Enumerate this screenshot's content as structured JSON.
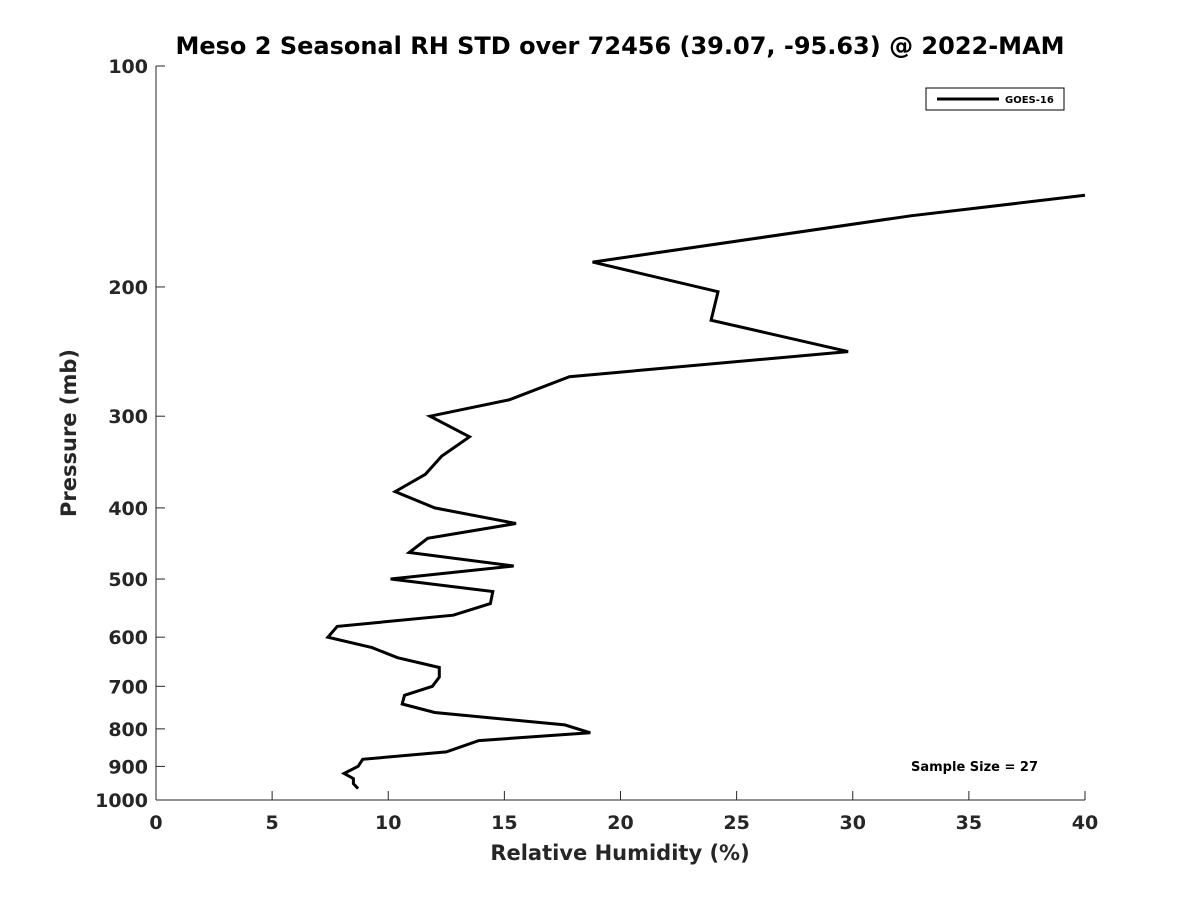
{
  "chart_data": {
    "type": "line",
    "title": "Meso 2 Seasonal RH STD over 72456 (39.07, -95.63) @ 2022-MAM",
    "xlabel": "Relative Humidity (%)",
    "ylabel": "Pressure (mb)",
    "xlim": [
      0,
      40
    ],
    "ylim": [
      100,
      1000
    ],
    "y_scale": "log",
    "y_reversed": true,
    "x_ticks": [
      0,
      5,
      10,
      15,
      20,
      25,
      30,
      35,
      40
    ],
    "y_ticks": [
      100,
      200,
      300,
      400,
      500,
      600,
      700,
      800,
      900,
      1000
    ],
    "grid": false,
    "legend": {
      "position": "top-right",
      "entries": [
        "GOES-16"
      ]
    },
    "annotation": "Sample Size = 27",
    "series": [
      {
        "name": "GOES-16",
        "color": "#000000",
        "points": [
          [
            40.0,
            150
          ],
          [
            32.5,
            160
          ],
          [
            18.8,
            185
          ],
          [
            24.2,
            203
          ],
          [
            23.9,
            222
          ],
          [
            29.8,
            245
          ],
          [
            17.8,
            265
          ],
          [
            15.2,
            285
          ],
          [
            11.8,
            300
          ],
          [
            13.5,
            320
          ],
          [
            12.3,
            340
          ],
          [
            11.6,
            360
          ],
          [
            10.3,
            380
          ],
          [
            12.0,
            400
          ],
          [
            15.5,
            420
          ],
          [
            11.7,
            440
          ],
          [
            10.9,
            460
          ],
          [
            15.4,
            480
          ],
          [
            10.1,
            500
          ],
          [
            14.5,
            520
          ],
          [
            14.4,
            540
          ],
          [
            12.8,
            560
          ],
          [
            7.8,
            580
          ],
          [
            7.4,
            600
          ],
          [
            9.3,
            620
          ],
          [
            10.4,
            640
          ],
          [
            12.2,
            660
          ],
          [
            12.2,
            680
          ],
          [
            11.9,
            700
          ],
          [
            10.7,
            720
          ],
          [
            10.6,
            740
          ],
          [
            12.0,
            760
          ],
          [
            17.6,
            790
          ],
          [
            18.7,
            810
          ],
          [
            13.9,
            830
          ],
          [
            12.5,
            860
          ],
          [
            8.9,
            880
          ],
          [
            8.7,
            900
          ],
          [
            8.1,
            920
          ],
          [
            8.5,
            935
          ],
          [
            8.5,
            950
          ],
          [
            8.7,
            965
          ]
        ]
      }
    ]
  }
}
